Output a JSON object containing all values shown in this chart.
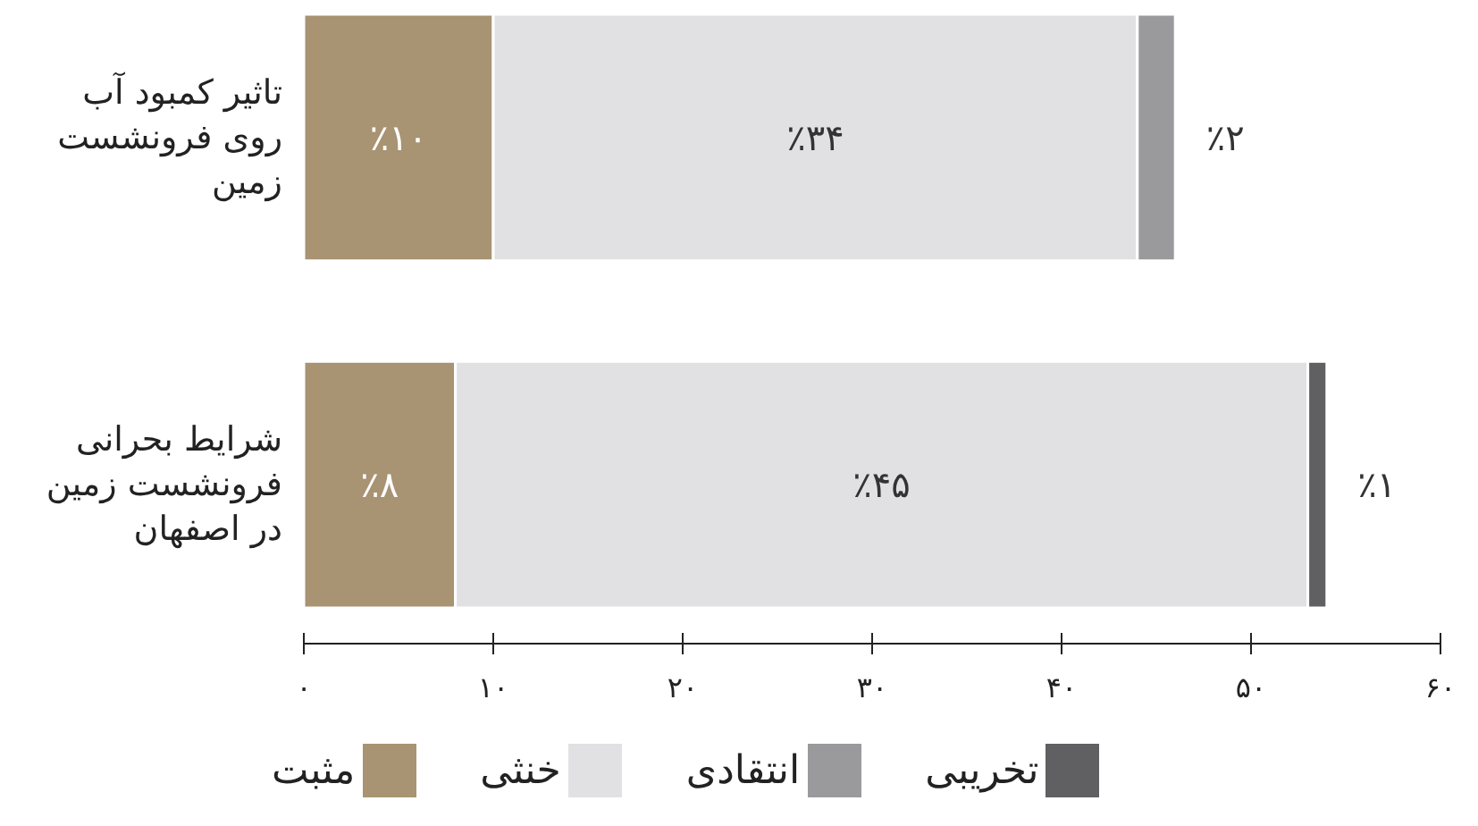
{
  "chart_data": {
    "type": "bar",
    "orientation": "horizontal",
    "stacked": true,
    "categories": [
      "تاثیر کمبود آب روی فرونشست زمین",
      "شرایط بحرانی فرونشست زمین در اصفهان"
    ],
    "series": [
      {
        "name": "مثبت",
        "color": "#a89372",
        "values": [
          10,
          8
        ],
        "value_labels": [
          "٪۱۰",
          "٪۸"
        ]
      },
      {
        "name": "خنثی",
        "color": "#e1e1e3",
        "values": [
          34,
          45
        ],
        "value_labels": [
          "٪۳۴",
          "٪۴۵"
        ]
      },
      {
        "name": "انتقادی",
        "color": "#9a9a9c",
        "values": [
          2,
          null
        ],
        "value_labels": [
          "٪۲",
          null
        ]
      },
      {
        "name": "تخریبی",
        "color": "#606062",
        "values": [
          null,
          1
        ],
        "value_labels": [
          null,
          "٪۱"
        ]
      }
    ],
    "xlim": [
      0,
      60
    ],
    "xticks": [
      {
        "value": 0,
        "label": "۰"
      },
      {
        "value": 10,
        "label": "۱۰"
      },
      {
        "value": 20,
        "label": "۲۰"
      },
      {
        "value": 30,
        "label": "۳۰"
      },
      {
        "value": 40,
        "label": "۴۰"
      },
      {
        "value": 50,
        "label": "۵۰"
      },
      {
        "value": 60,
        "label": "۶۰"
      }
    ],
    "legend": "bottom",
    "grid": false
  }
}
